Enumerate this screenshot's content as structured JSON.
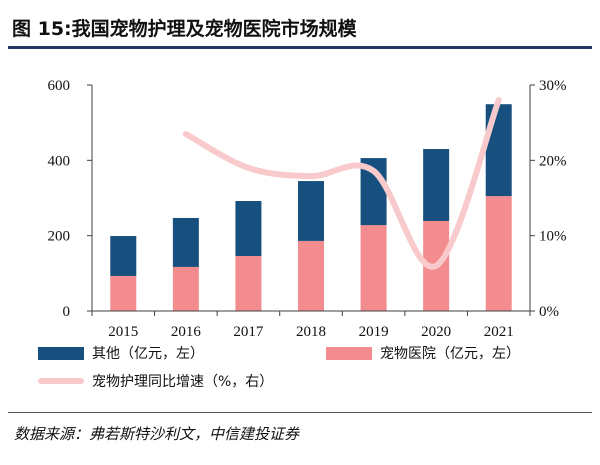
{
  "figure": {
    "title": "图 15:我国宠物护理及宠物医院市场规模",
    "source": "数据来源：弗若斯特沙利文，中信建投证券"
  },
  "colors": {
    "title_rule": "#1F3864",
    "axis": "#404040",
    "text": "#111111"
  },
  "chart_data": {
    "type": "bar",
    "stacked": true,
    "categories": [
      "2015",
      "2016",
      "2017",
      "2018",
      "2019",
      "2020",
      "2021"
    ],
    "series": [
      {
        "name": "其他（亿元，左）",
        "kind": "bar",
        "axis": "left",
        "stack_position": "top",
        "color": "#17507F",
        "values": [
          106,
          130,
          146,
          159,
          178,
          191,
          244
        ]
      },
      {
        "name": "宠物医院（亿元，左）",
        "kind": "bar",
        "axis": "left",
        "stack_position": "bottom",
        "color": "#F38C8E",
        "values": [
          93,
          117,
          146,
          186,
          228,
          239,
          305
        ]
      },
      {
        "name": "宠物护理同比增速（%，右）",
        "kind": "line",
        "axis": "right",
        "color": "#F9CACB",
        "values": [
          null,
          23.5,
          19.0,
          17.9,
          18.6,
          6.0,
          28.0
        ]
      }
    ],
    "y_left": {
      "lim": [
        0,
        600
      ],
      "ticks": [
        0,
        200,
        400,
        600
      ],
      "tick_labels": [
        "0",
        "200",
        "400",
        "600"
      ]
    },
    "y_right": {
      "lim": [
        0,
        30
      ],
      "ticks": [
        0,
        10,
        20,
        30
      ],
      "tick_labels": [
        "0%",
        "10%",
        "20%",
        "30%"
      ]
    },
    "grid": false,
    "legend": "bottom"
  }
}
